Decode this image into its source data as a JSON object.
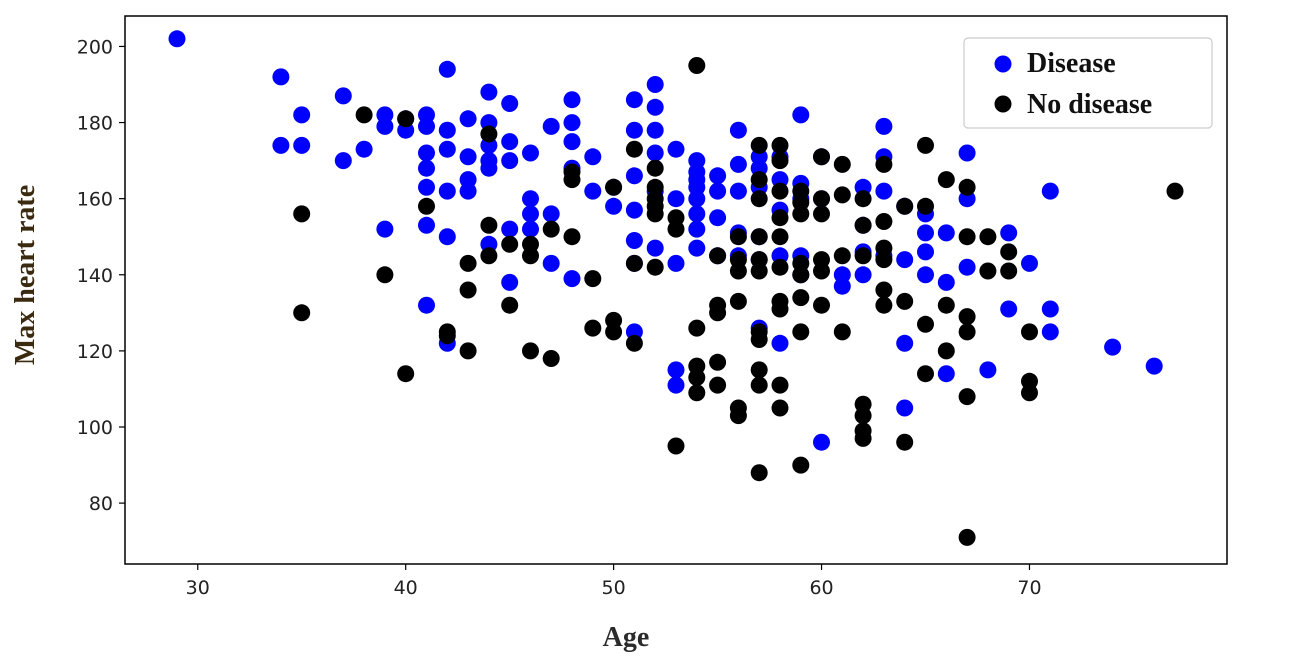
{
  "chart_data": {
    "type": "scatter",
    "xlabel": "Age",
    "ylabel": "Max heart rate",
    "xlim": [
      26.5,
      79.5
    ],
    "ylim": [
      64,
      208
    ],
    "xticks": [
      30,
      40,
      50,
      60,
      70
    ],
    "yticks": [
      80,
      100,
      120,
      140,
      160,
      180,
      200
    ],
    "grid": false,
    "legend_position": "top-right",
    "colors": {
      "axis_title_ylabel": "#3a2a10",
      "axis_title_xlabel": "#2b2b2b"
    },
    "series": [
      {
        "name": "Disease",
        "color": "#0000ff",
        "points": [
          [
            29,
            202
          ],
          [
            34,
            192
          ],
          [
            34,
            174
          ],
          [
            35,
            182
          ],
          [
            35,
            174
          ],
          [
            37,
            187
          ],
          [
            37,
            170
          ],
          [
            38,
            173
          ],
          [
            39,
            182
          ],
          [
            39,
            179
          ],
          [
            39,
            152
          ],
          [
            40,
            181
          ],
          [
            40,
            178
          ],
          [
            41,
            182
          ],
          [
            41,
            179
          ],
          [
            41,
            172
          ],
          [
            41,
            168
          ],
          [
            41,
            163
          ],
          [
            41,
            153
          ],
          [
            41,
            132
          ],
          [
            42,
            194
          ],
          [
            42,
            178
          ],
          [
            42,
            173
          ],
          [
            42,
            162
          ],
          [
            42,
            150
          ],
          [
            42,
            122
          ],
          [
            43,
            181
          ],
          [
            43,
            171
          ],
          [
            43,
            165
          ],
          [
            43,
            162
          ],
          [
            44,
            188
          ],
          [
            44,
            180
          ],
          [
            44,
            174
          ],
          [
            44,
            170
          ],
          [
            44,
            168
          ],
          [
            44,
            148
          ],
          [
            45,
            185
          ],
          [
            45,
            175
          ],
          [
            45,
            170
          ],
          [
            45,
            152
          ],
          [
            45,
            138
          ],
          [
            46,
            172
          ],
          [
            46,
            160
          ],
          [
            46,
            156
          ],
          [
            46,
            152
          ],
          [
            47,
            179
          ],
          [
            47,
            156
          ],
          [
            47,
            143
          ],
          [
            48,
            186
          ],
          [
            48,
            180
          ],
          [
            48,
            175
          ],
          [
            48,
            168
          ],
          [
            48,
            139
          ],
          [
            49,
            171
          ],
          [
            49,
            162
          ],
          [
            50,
            163
          ],
          [
            50,
            158
          ],
          [
            51,
            186
          ],
          [
            51,
            178
          ],
          [
            51,
            166
          ],
          [
            51,
            157
          ],
          [
            51,
            149
          ],
          [
            51,
            143
          ],
          [
            51,
            125
          ],
          [
            52,
            190
          ],
          [
            52,
            184
          ],
          [
            52,
            178
          ],
          [
            52,
            172
          ],
          [
            52,
            162
          ],
          [
            52,
            147
          ],
          [
            53,
            173
          ],
          [
            53,
            160
          ],
          [
            53,
            143
          ],
          [
            53,
            115
          ],
          [
            53,
            111
          ],
          [
            54,
            170
          ],
          [
            54,
            167
          ],
          [
            54,
            165
          ],
          [
            54,
            163
          ],
          [
            54,
            160
          ],
          [
            54,
            156
          ],
          [
            54,
            152
          ],
          [
            54,
            147
          ],
          [
            55,
            166
          ],
          [
            55,
            162
          ],
          [
            55,
            155
          ],
          [
            55,
            145
          ],
          [
            56,
            178
          ],
          [
            56,
            169
          ],
          [
            56,
            162
          ],
          [
            56,
            151
          ],
          [
            56,
            145
          ],
          [
            57,
            171
          ],
          [
            57,
            168
          ],
          [
            57,
            163
          ],
          [
            57,
            150
          ],
          [
            57,
            144
          ],
          [
            57,
            126
          ],
          [
            58,
            171
          ],
          [
            58,
            165
          ],
          [
            58,
            157
          ],
          [
            58,
            145
          ],
          [
            58,
            122
          ],
          [
            59,
            182
          ],
          [
            59,
            164
          ],
          [
            59,
            160
          ],
          [
            59,
            145
          ],
          [
            59,
            140
          ],
          [
            60,
            171
          ],
          [
            60,
            160
          ],
          [
            60,
            96
          ],
          [
            61,
            140
          ],
          [
            61,
            137
          ],
          [
            62,
            163
          ],
          [
            62,
            153
          ],
          [
            62,
            146
          ],
          [
            62,
            140
          ],
          [
            63,
            179
          ],
          [
            63,
            171
          ],
          [
            63,
            162
          ],
          [
            63,
            145
          ],
          [
            64,
            158
          ],
          [
            64,
            144
          ],
          [
            64,
            122
          ],
          [
            64,
            105
          ],
          [
            65,
            156
          ],
          [
            65,
            151
          ],
          [
            65,
            146
          ],
          [
            65,
            140
          ],
          [
            66,
            151
          ],
          [
            66,
            138
          ],
          [
            66,
            114
          ],
          [
            67,
            172
          ],
          [
            67,
            160
          ],
          [
            67,
            142
          ],
          [
            68,
            115
          ],
          [
            69,
            151
          ],
          [
            69,
            131
          ],
          [
            70,
            143
          ],
          [
            71,
            162
          ],
          [
            71,
            131
          ],
          [
            71,
            125
          ],
          [
            74,
            121
          ],
          [
            76,
            116
          ]
        ]
      },
      {
        "name": "No disease",
        "color": "#000000",
        "points": [
          [
            35,
            156
          ],
          [
            35,
            130
          ],
          [
            38,
            182
          ],
          [
            39,
            140
          ],
          [
            40,
            181
          ],
          [
            40,
            114
          ],
          [
            41,
            158
          ],
          [
            42,
            125
          ],
          [
            42,
            124
          ],
          [
            43,
            143
          ],
          [
            43,
            136
          ],
          [
            43,
            120
          ],
          [
            44,
            177
          ],
          [
            44,
            153
          ],
          [
            44,
            145
          ],
          [
            45,
            148
          ],
          [
            45,
            132
          ],
          [
            46,
            148
          ],
          [
            46,
            145
          ],
          [
            46,
            120
          ],
          [
            47,
            152
          ],
          [
            47,
            118
          ],
          [
            48,
            167
          ],
          [
            48,
            165
          ],
          [
            48,
            150
          ],
          [
            49,
            139
          ],
          [
            49,
            126
          ],
          [
            50,
            163
          ],
          [
            50,
            128
          ],
          [
            50,
            125
          ],
          [
            51,
            173
          ],
          [
            51,
            143
          ],
          [
            51,
            122
          ],
          [
            52,
            168
          ],
          [
            52,
            163
          ],
          [
            52,
            160
          ],
          [
            52,
            158
          ],
          [
            52,
            156
          ],
          [
            52,
            142
          ],
          [
            53,
            155
          ],
          [
            53,
            152
          ],
          [
            53,
            95
          ],
          [
            54,
            195
          ],
          [
            54,
            126
          ],
          [
            54,
            116
          ],
          [
            54,
            113
          ],
          [
            54,
            109
          ],
          [
            55,
            145
          ],
          [
            55,
            132
          ],
          [
            55,
            130
          ],
          [
            55,
            117
          ],
          [
            55,
            111
          ],
          [
            56,
            150
          ],
          [
            56,
            144
          ],
          [
            56,
            141
          ],
          [
            56,
            133
          ],
          [
            56,
            105
          ],
          [
            56,
            103
          ],
          [
            57,
            174
          ],
          [
            57,
            165
          ],
          [
            57,
            160
          ],
          [
            57,
            150
          ],
          [
            57,
            144
          ],
          [
            57,
            141
          ],
          [
            57,
            125
          ],
          [
            57,
            123
          ],
          [
            57,
            115
          ],
          [
            57,
            111
          ],
          [
            57,
            88
          ],
          [
            58,
            174
          ],
          [
            58,
            170
          ],
          [
            58,
            162
          ],
          [
            58,
            155
          ],
          [
            58,
            150
          ],
          [
            58,
            142
          ],
          [
            58,
            133
          ],
          [
            58,
            131
          ],
          [
            58,
            111
          ],
          [
            58,
            105
          ],
          [
            59,
            162
          ],
          [
            59,
            159
          ],
          [
            59,
            156
          ],
          [
            59,
            143
          ],
          [
            59,
            140
          ],
          [
            59,
            134
          ],
          [
            59,
            125
          ],
          [
            59,
            90
          ],
          [
            60,
            171
          ],
          [
            60,
            160
          ],
          [
            60,
            156
          ],
          [
            60,
            144
          ],
          [
            60,
            141
          ],
          [
            60,
            132
          ],
          [
            61,
            169
          ],
          [
            61,
            161
          ],
          [
            61,
            145
          ],
          [
            61,
            125
          ],
          [
            62,
            160
          ],
          [
            62,
            153
          ],
          [
            62,
            145
          ],
          [
            62,
            106
          ],
          [
            62,
            103
          ],
          [
            62,
            99
          ],
          [
            62,
            97
          ],
          [
            63,
            169
          ],
          [
            63,
            154
          ],
          [
            63,
            147
          ],
          [
            63,
            144
          ],
          [
            63,
            136
          ],
          [
            63,
            132
          ],
          [
            64,
            158
          ],
          [
            64,
            133
          ],
          [
            64,
            96
          ],
          [
            65,
            174
          ],
          [
            65,
            158
          ],
          [
            65,
            127
          ],
          [
            65,
            114
          ],
          [
            66,
            165
          ],
          [
            66,
            132
          ],
          [
            66,
            120
          ],
          [
            67,
            163
          ],
          [
            67,
            150
          ],
          [
            67,
            129
          ],
          [
            67,
            125
          ],
          [
            67,
            108
          ],
          [
            67,
            71
          ],
          [
            68,
            150
          ],
          [
            68,
            141
          ],
          [
            69,
            146
          ],
          [
            69,
            141
          ],
          [
            70,
            125
          ],
          [
            70,
            112
          ],
          [
            70,
            109
          ],
          [
            77,
            162
          ]
        ]
      }
    ]
  }
}
